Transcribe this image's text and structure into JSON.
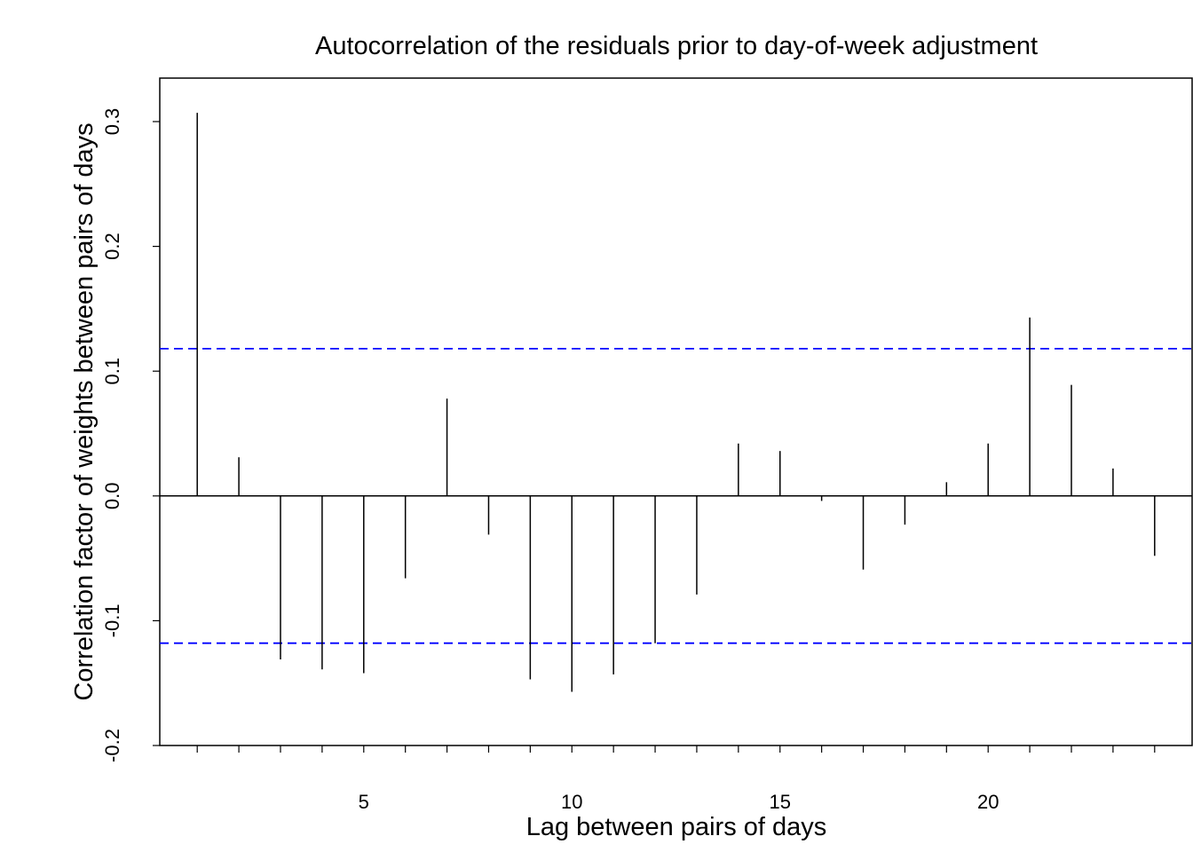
{
  "chart_data": {
    "type": "bar",
    "title": "Autocorrelation of the residuals prior to day-of-week adjustment",
    "xlabel": "Lag between pairs of days",
    "ylabel": "Correlation factor of weights between pairs of days",
    "xlim": [
      0.1,
      24.9
    ],
    "ylim": [
      -0.2,
      0.3
    ],
    "x_ticks": [
      1,
      2,
      3,
      4,
      5,
      6,
      7,
      8,
      9,
      10,
      11,
      12,
      13,
      14,
      15,
      16,
      17,
      18,
      19,
      20,
      21,
      22,
      23,
      24
    ],
    "x_tick_labels": [
      "",
      "",
      "",
      "",
      "5",
      "",
      "",
      "",
      "",
      "10",
      "",
      "",
      "",
      "",
      "15",
      "",
      "",
      "",
      "",
      "20",
      "",
      "",
      "",
      ""
    ],
    "y_ticks": [
      -0.2,
      -0.1,
      0.0,
      0.1,
      0.2,
      0.3
    ],
    "y_tick_labels": [
      "-0.2",
      "-0.1",
      "0.0",
      "0.1",
      "0.2",
      "0.3"
    ],
    "lags": [
      1,
      2,
      3,
      4,
      5,
      6,
      7,
      8,
      9,
      10,
      11,
      12,
      13,
      14,
      15,
      16,
      17,
      18,
      19,
      20,
      21,
      22,
      23,
      24
    ],
    "values": [
      0.307,
      0.031,
      -0.131,
      -0.139,
      -0.142,
      -0.066,
      0.078,
      -0.031,
      -0.147,
      -0.157,
      -0.143,
      -0.118,
      -0.079,
      0.042,
      0.036,
      -0.004,
      -0.059,
      -0.023,
      0.011,
      0.042,
      0.143,
      0.089,
      0.022,
      -0.048
    ],
    "confidence_bounds": [
      0.118,
      -0.118
    ],
    "bar_color": "#000000",
    "bound_color": "#0000ff",
    "grid": false,
    "legend": "none"
  }
}
